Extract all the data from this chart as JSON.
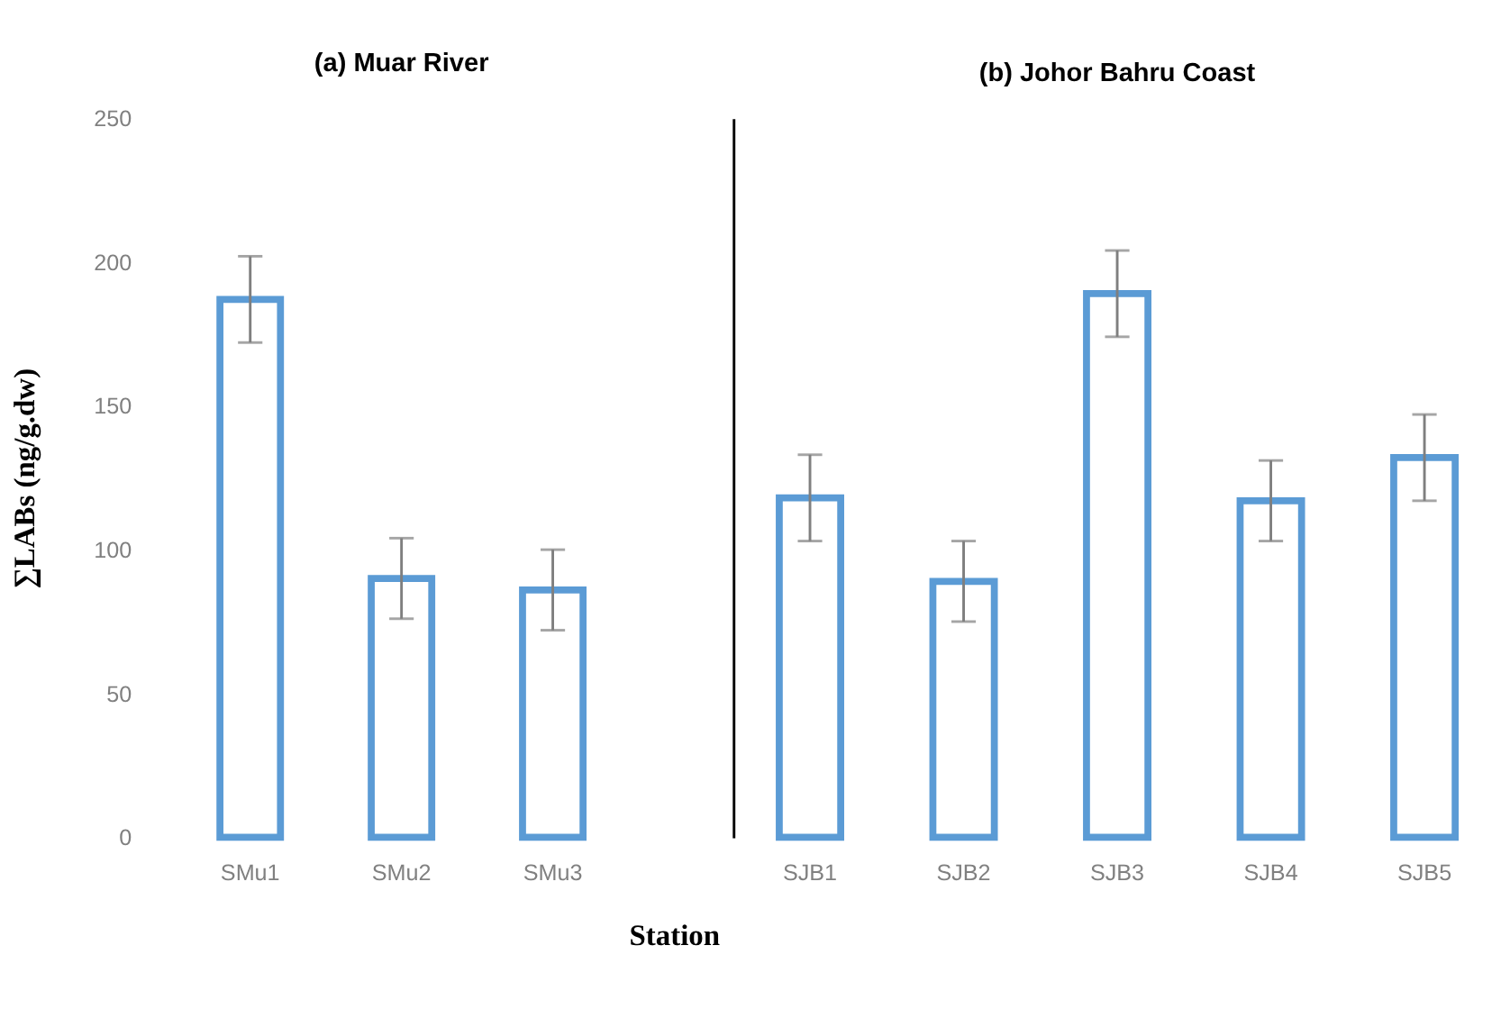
{
  "chart_data": [
    {
      "type": "bar",
      "title": "(a) Muar River",
      "ylabel": "∑LABs (ng/g.dw)",
      "categories": [
        "SMu1",
        "SMu2",
        "SMu3"
      ],
      "series": [
        {
          "color": "#5b9bd5",
          "values": [
            187,
            90,
            86
          ],
          "errors": [
            15,
            14,
            14
          ]
        }
      ],
      "ylim": [
        0,
        250
      ],
      "yticks": [
        0,
        50,
        100,
        150,
        200,
        250
      ],
      "grid": false
    },
    {
      "type": "bar",
      "title": "(b) Johor Bahru Coast",
      "xlabel": "Station",
      "categories": [
        "SJB1",
        "SJB2",
        "SJB3",
        "SJB4",
        "SJB5"
      ],
      "series": [
        {
          "color": "#5b9bd5",
          "values": [
            118,
            89,
            189,
            117,
            132
          ],
          "errors": [
            15,
            14,
            15,
            14,
            15
          ]
        }
      ],
      "ylim": [
        0,
        250
      ],
      "yticks": [
        0,
        50,
        100,
        150,
        200,
        250
      ],
      "tick_labels": "x",
      "grid": false
    }
  ]
}
